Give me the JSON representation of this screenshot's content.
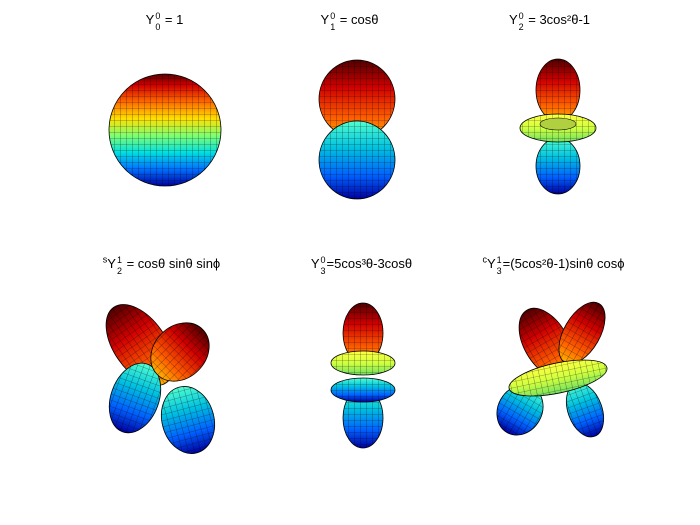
{
  "figure": {
    "panels": [
      {
        "id": "Y00",
        "title": {
          "pre": "",
          "base": "Y",
          "sup": "0",
          "sub": "0",
          "rest": " = 1"
        }
      },
      {
        "id": "Y10",
        "title": {
          "pre": "",
          "base": "Y",
          "sup": "0",
          "sub": "1",
          "rest": " =  cosθ"
        }
      },
      {
        "id": "Y20",
        "title": {
          "pre": "",
          "base": "Y",
          "sup": "0",
          "sub": "2",
          "rest": " =  3cos²θ-1"
        }
      },
      {
        "id": "sY21",
        "title": {
          "pre": "s",
          "base": "Y",
          "sup": "1",
          "sub": "2",
          "rest": " =  cosθ sinθ sinϕ"
        }
      },
      {
        "id": "Y30",
        "title": {
          "pre": "",
          "base": "Y",
          "sup": "0",
          "sub": "3",
          "rest": "=5cos³θ-3cosθ"
        }
      },
      {
        "id": "cY31",
        "title": {
          "pre": "c",
          "base": "Y",
          "sup": "1",
          "sub": "3",
          "rest": "=(5cos²θ-1)sinθ cosϕ"
        }
      }
    ],
    "colormap": [
      "#00007f",
      "#0000ff",
      "#007fff",
      "#00ffff",
      "#7fff7f",
      "#ffff00",
      "#ff7f00",
      "#ff0000",
      "#7f0000"
    ],
    "mesh_color": "#000000"
  }
}
